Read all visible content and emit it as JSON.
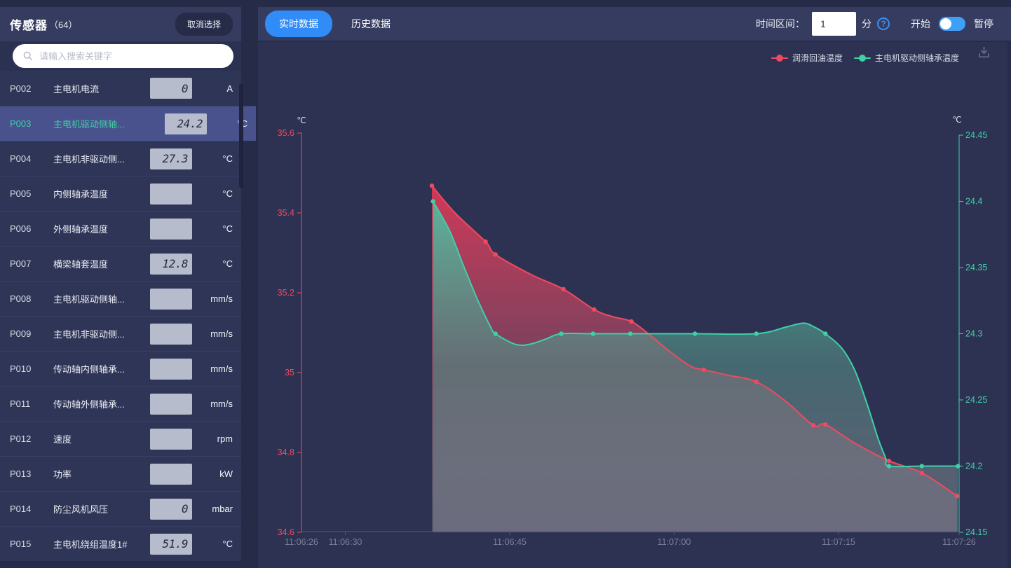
{
  "colors": {
    "accent_blue": "#318cf7",
    "series_red": "#ef4a60",
    "series_teal": "#3fd0a8",
    "selected_row_bg": "#4a528e",
    "value_box_bg": "#b6bccb"
  },
  "icons": {
    "search": "magnifier-icon",
    "help": "question-circle-icon",
    "download": "download-tray-icon",
    "legend_marker": "line-dot-marker"
  },
  "sidebar": {
    "title": "传感器",
    "count": "（64）",
    "deselect_button": "取消选择",
    "search_placeholder": "请输入搜索关键字",
    "rows": [
      {
        "code": "P002",
        "name": "主电机电流",
        "value": "0",
        "unit": "A",
        "selected": false
      },
      {
        "code": "P003",
        "name": "主电机驱动侧轴...",
        "value": "24.2",
        "unit": "°C",
        "selected": true
      },
      {
        "code": "P004",
        "name": "主电机非驱动侧...",
        "value": "27.3",
        "unit": "°C",
        "selected": false
      },
      {
        "code": "P005",
        "name": "内侧轴承温度",
        "value": "",
        "unit": "°C",
        "selected": false
      },
      {
        "code": "P006",
        "name": "外侧轴承温度",
        "value": "",
        "unit": "°C",
        "selected": false
      },
      {
        "code": "P007",
        "name": "横梁轴套温度",
        "value": "12.8",
        "unit": "°C",
        "selected": false
      },
      {
        "code": "P008",
        "name": "主电机驱动侧轴...",
        "value": "",
        "unit": "mm/s",
        "selected": false
      },
      {
        "code": "P009",
        "name": "主电机非驱动侧...",
        "value": "",
        "unit": "mm/s",
        "selected": false
      },
      {
        "code": "P010",
        "name": "传动轴内侧轴承...",
        "value": "",
        "unit": "mm/s",
        "selected": false
      },
      {
        "code": "P011",
        "name": "传动轴外侧轴承...",
        "value": "",
        "unit": "mm/s",
        "selected": false
      },
      {
        "code": "P012",
        "name": "速度",
        "value": "",
        "unit": "rpm",
        "selected": false
      },
      {
        "code": "P013",
        "name": "功率",
        "value": "",
        "unit": "kW",
        "selected": false
      },
      {
        "code": "P014",
        "name": "防尘风机风压",
        "value": "0",
        "unit": "mbar",
        "selected": false
      },
      {
        "code": "P015",
        "name": "主电机绕组温度1#",
        "value": "51.9",
        "unit": "°C",
        "selected": false
      }
    ]
  },
  "topbar": {
    "tabs": [
      {
        "label": "实时数据",
        "active": true
      },
      {
        "label": "历史数据",
        "active": false
      }
    ],
    "interval_label": "时间区间：",
    "interval_value": "1",
    "interval_unit": "分",
    "start_label": "开始",
    "pause_label": "暂停",
    "toggle_state": "start"
  },
  "chart_data": {
    "type": "area",
    "legend_position": "top-right",
    "grid": false,
    "x_axis": {
      "t_min": 0,
      "t_max": 60,
      "ticks": [
        {
          "label": "11:06:26",
          "t": 0
        },
        {
          "label": "11:06:30",
          "t": 4
        },
        {
          "label": "11:06:45",
          "t": 19
        },
        {
          "label": "11:07:00",
          "t": 34
        },
        {
          "label": "11:07:15",
          "t": 49
        },
        {
          "label": "11:07:26",
          "t": 60
        }
      ]
    },
    "y_axis_left": {
      "unit": "℃",
      "min": 34.6,
      "max": 35.6,
      "ticks": [
        "35.6",
        "35.4",
        "35.2",
        "35",
        "34.8",
        "34.6"
      ],
      "color": "#ef4a60"
    },
    "y_axis_right": {
      "unit": "℃",
      "min": 24.15,
      "max": 24.45,
      "ticks": [
        "24.45",
        "24.4",
        "24.35",
        "24.3",
        "24.25",
        "24.2",
        "24.15"
      ],
      "color": "#3fd0a8"
    },
    "series": [
      {
        "name": "润滑回油温度",
        "axis": "left",
        "color": "#ef4a60",
        "points": [
          [
            11.9,
            35.468,
            1
          ],
          [
            14,
            35.4,
            0
          ],
          [
            16.8,
            35.328,
            1
          ],
          [
            17.7,
            35.296,
            1
          ],
          [
            21,
            35.245,
            0
          ],
          [
            23.9,
            35.209,
            1
          ],
          [
            26.7,
            35.158,
            1
          ],
          [
            28.4,
            35.14,
            0
          ],
          [
            30.1,
            35.128,
            1
          ],
          [
            31.7,
            35.096,
            0
          ],
          [
            33.6,
            35.053,
            0
          ],
          [
            35.5,
            35.016,
            0
          ],
          [
            36.7,
            35.007,
            1
          ],
          [
            39,
            34.993,
            0
          ],
          [
            41.5,
            34.977,
            1
          ],
          [
            44.1,
            34.93,
            0
          ],
          [
            46.7,
            34.868,
            1
          ],
          [
            47.8,
            34.87,
            1
          ],
          [
            50.5,
            34.823,
            0
          ],
          [
            53.6,
            34.779,
            1
          ],
          [
            56.6,
            34.749,
            1
          ],
          [
            59.8,
            34.691,
            1
          ]
        ]
      },
      {
        "name": "主电机驱动侧轴承温度",
        "axis": "right",
        "color": "#3fd0a8",
        "points": [
          [
            12,
            24.4,
            1
          ],
          [
            13.5,
            24.378,
            0
          ],
          [
            14.8,
            24.351,
            0
          ],
          [
            16,
            24.327,
            0
          ],
          [
            17.2,
            24.306,
            0
          ],
          [
            17.7,
            24.3,
            1
          ],
          [
            19.5,
            24.292,
            0
          ],
          [
            20.8,
            24.292,
            0
          ],
          [
            22.3,
            24.296,
            0
          ],
          [
            23.7,
            24.3,
            1
          ],
          [
            26.6,
            24.3,
            1
          ],
          [
            30,
            24.3,
            1
          ],
          [
            35.9,
            24.3,
            1
          ],
          [
            41.5,
            24.3,
            1
          ],
          [
            44.2,
            24.305,
            0
          ],
          [
            45.8,
            24.308,
            0
          ],
          [
            46.8,
            24.305,
            0
          ],
          [
            47.8,
            24.3,
            1
          ],
          [
            49.3,
            24.289,
            0
          ],
          [
            50.5,
            24.272,
            0
          ],
          [
            51.6,
            24.247,
            0
          ],
          [
            52.6,
            24.221,
            0
          ],
          [
            53.3,
            24.206,
            0
          ],
          [
            53.6,
            24.2,
            1
          ],
          [
            56.6,
            24.2,
            1
          ],
          [
            59.9,
            24.2,
            1
          ]
        ]
      }
    ]
  }
}
